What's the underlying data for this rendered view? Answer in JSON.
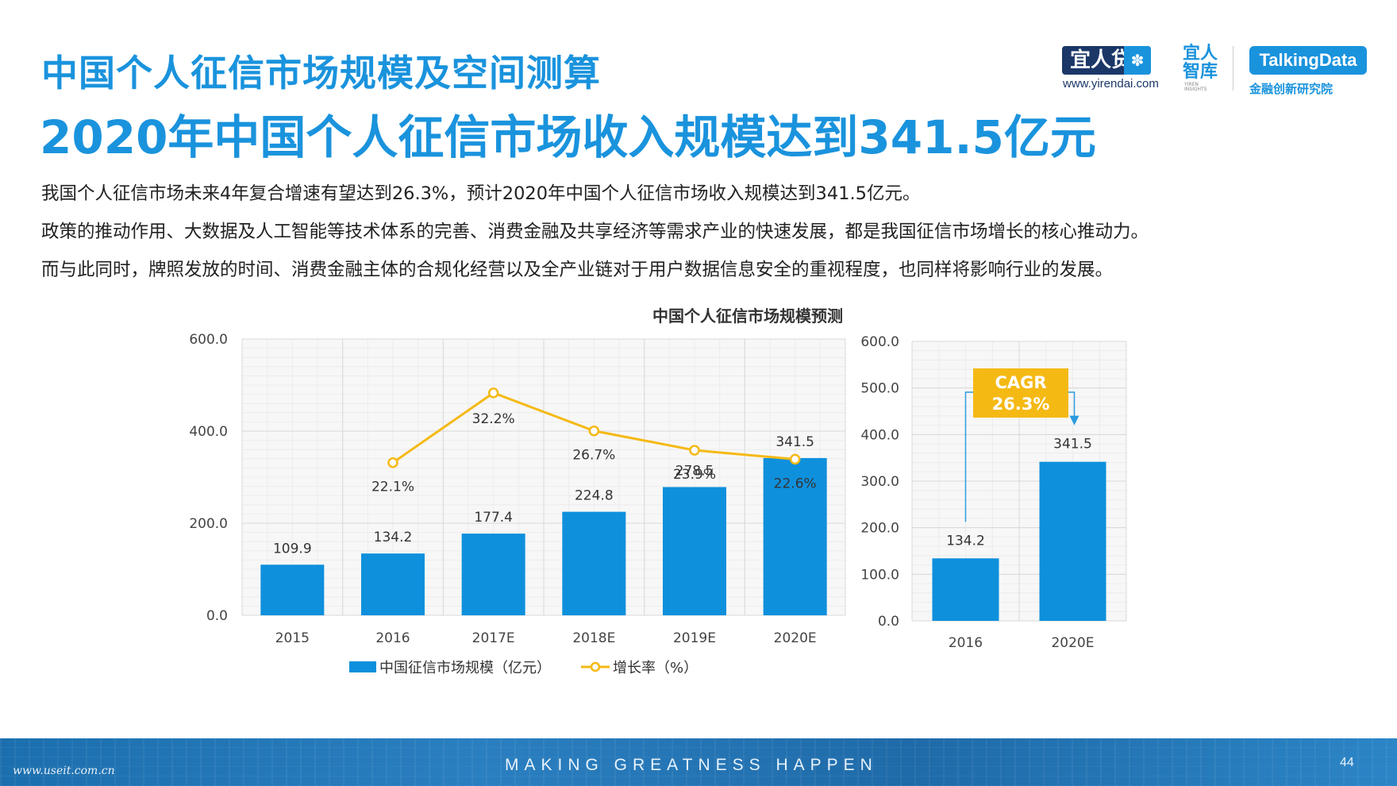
{
  "header": {
    "title": "中国个人征信市场规模及空间测算",
    "subtitle": "2020年中国个人征信市场收入规模达到341.5亿元"
  },
  "body": {
    "paragraphs": [
      "我国个人征信市场未来4年复合增速有望达到26.3%，预计2020年中国个人征信市场收入规模达到341.5亿元。",
      "政策的推动作用、大数据及人工智能等技术体系的完善、消费金融及共享经济等需求产业的快速发展，都是我国征信市场增长的核心推动力。",
      "而与此同时，牌照发放的时间、消费金融主体的合规化经营以及全产业链对于用户数据信息安全的重视程度，也同样将影响行业的发展。"
    ]
  },
  "logos": {
    "yirendai": "宜人贷",
    "yirendai_url": "www.yirendai.com",
    "zhiku": "宜人智库",
    "zhiku_sub": "YIREN INSIGHTS",
    "talkingdata": "TalkingData",
    "talkingdata_sub": "金融创新研究院"
  },
  "chart_data": [
    {
      "type": "bar",
      "title": "中国个人征信市场规模预测",
      "categories": [
        "2015",
        "2016",
        "2017E",
        "2018E",
        "2019E",
        "2020E"
      ],
      "series": [
        {
          "name": "中国征信市场规模（亿元）",
          "type": "bar",
          "axis": "left",
          "values": [
            109.9,
            134.2,
            177.4,
            224.8,
            278.5,
            341.5
          ],
          "labels": [
            "109.9",
            "134.2",
            "177.4",
            "224.8",
            "278.5",
            "341.5"
          ]
        },
        {
          "name": "增长率（%）",
          "type": "line",
          "axis": "secondary-hidden",
          "x": [
            "2016",
            "2017E",
            "2018E",
            "2019E",
            "2020E"
          ],
          "values": [
            22.1,
            32.2,
            26.7,
            23.9,
            22.6
          ],
          "labels": [
            "22.1%",
            "32.2%",
            "26.7%",
            "23.9%",
            "22.6%"
          ]
        }
      ],
      "ylim": [
        0,
        600
      ],
      "yticks": [
        "0.0",
        "200.0",
        "400.0",
        "600.0"
      ],
      "grid": true,
      "legend": "bottom",
      "colors": {
        "bar": "#0e90dc",
        "line": "#f5b914",
        "grid": "#e3e3e3",
        "plot_bg": "#f7f7f7"
      }
    },
    {
      "type": "bar",
      "categories": [
        "2016",
        "2020E"
      ],
      "values": [
        134.2,
        341.5
      ],
      "labels": [
        "134.2",
        "341.5"
      ],
      "ylim": [
        0,
        600
      ],
      "yticks": [
        "0.0",
        "100.0",
        "200.0",
        "300.0",
        "400.0",
        "500.0",
        "600.0"
      ],
      "grid": true,
      "annotation": {
        "text_line1": "CAGR",
        "text_line2": "26.3%",
        "color": "#f5b914",
        "from": "2016",
        "to": "2020E"
      },
      "colors": {
        "bar": "#0e90dc"
      }
    }
  ],
  "footer": {
    "slogan": "MAKING GREATNESS HAPPEN",
    "page": "44",
    "watermark": "www.useit.com.cn"
  }
}
